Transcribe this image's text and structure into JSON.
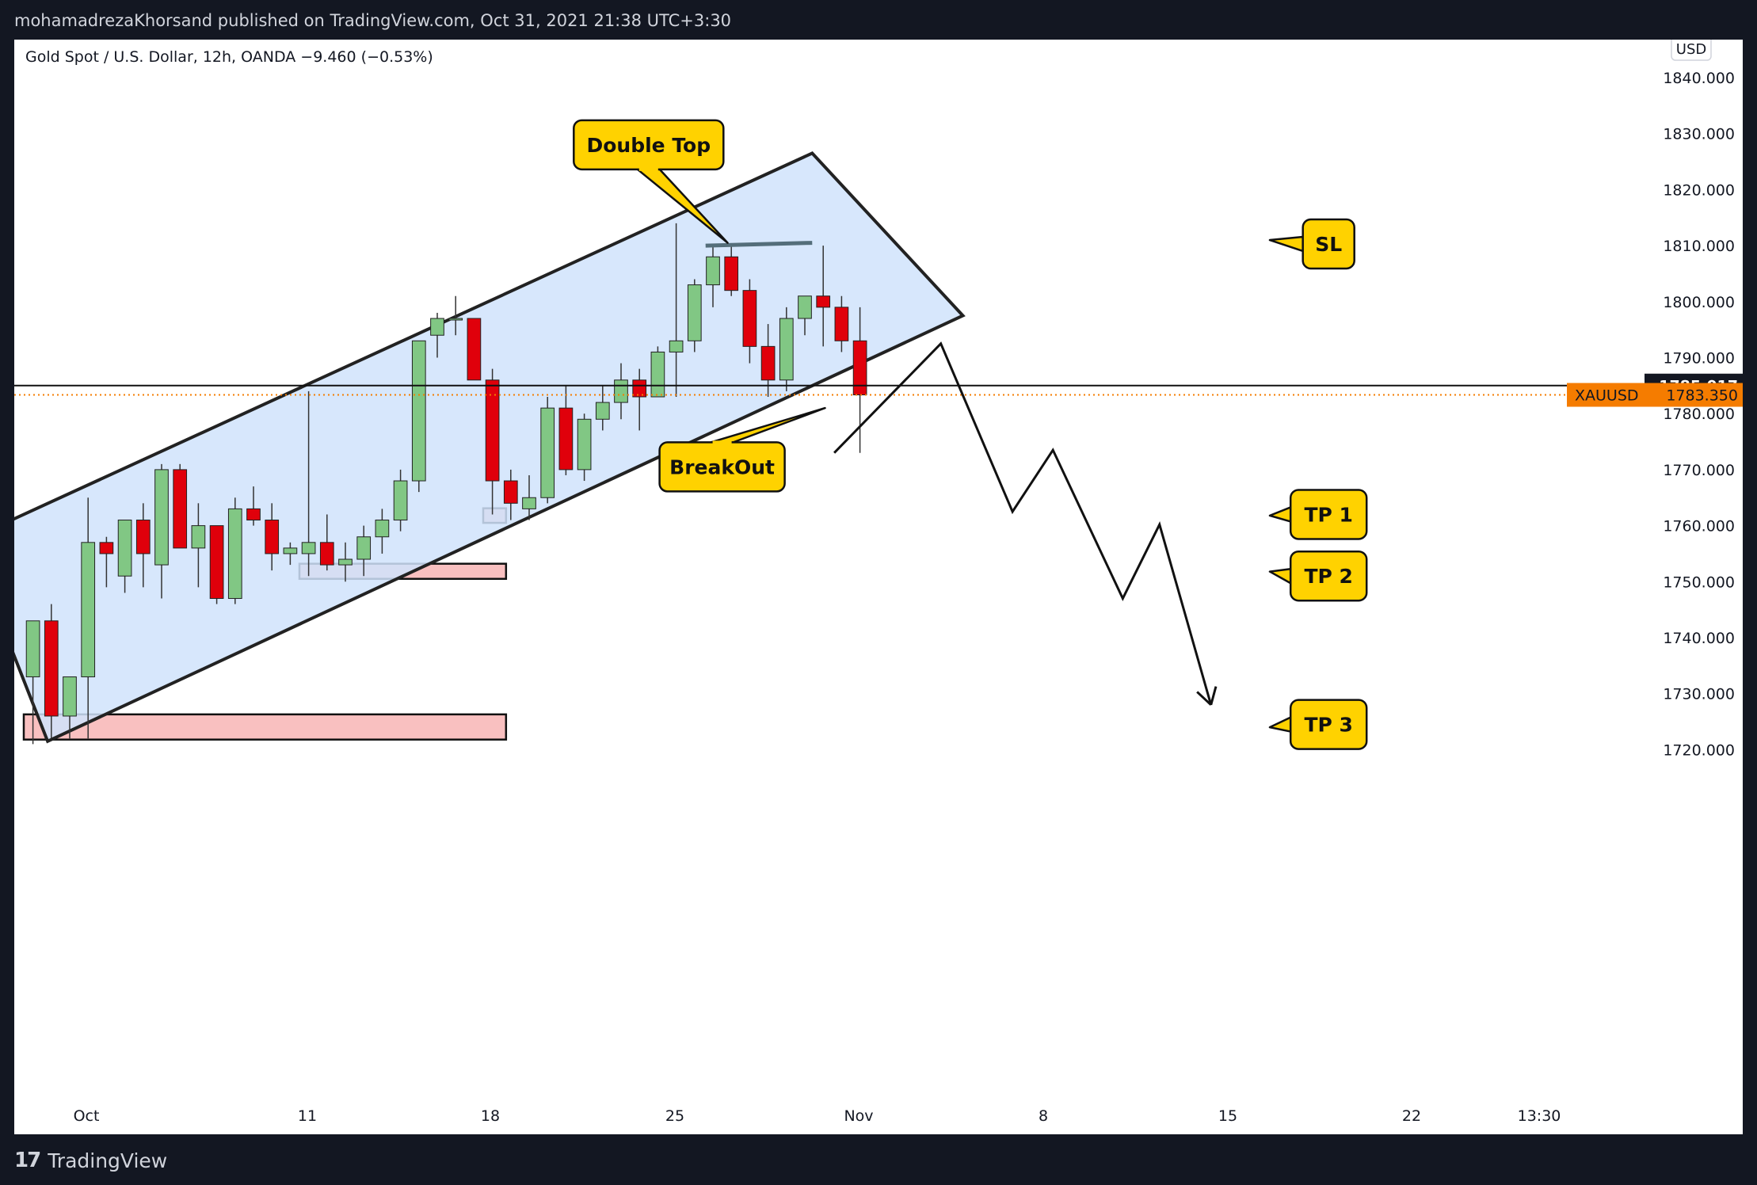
{
  "header": {
    "publish_line": "mohamadrezaKhorsand published on TradingView.com, Oct 31, 2021 21:38 UTC+3:30"
  },
  "chart_title": "Gold Spot / U.S. Dollar, 12h, OANDA  −9.460 (−0.53%)",
  "currency_button": "USD",
  "footer": {
    "brand": "TradingView",
    "logo_icon": "tradingview-logo-icon"
  },
  "colors": {
    "bull": "#81c784",
    "bear": "#e0000b",
    "channel": "#d0e3fb",
    "sl_zone": "#c9edf5",
    "entry_zone": "#fdf6c1",
    "tp_zone": "#f8b5b5",
    "callout": "#ffd200",
    "price_tag": "#f57c00",
    "border": "#131722"
  },
  "chart_data": {
    "type": "candlestick",
    "symbol": "XAUUSD",
    "ylim": [
      1712.5,
      1841.5
    ],
    "y_ticks": [
      "1720.000",
      "1730.000",
      "1740.000",
      "1750.000",
      "1760.000",
      "1770.000",
      "1780.000",
      "1790.000",
      "1800.000",
      "1810.000",
      "1820.000",
      "1830.000",
      "1840.000"
    ],
    "x_ticks": [
      "Oct",
      "11",
      "18",
      "25",
      "Nov",
      "8",
      "15",
      "22",
      "13:30"
    ],
    "last_price_label": "1785.017",
    "current_price_label": "1783.350",
    "current_price_symbol": "XAUUSD",
    "candles": [
      {
        "o": 1733.0,
        "h": 1743.0,
        "l": 1721.0,
        "c": 1743.0
      },
      {
        "o": 1743.0,
        "h": 1746.0,
        "l": 1722.0,
        "c": 1726.0
      },
      {
        "o": 1726.0,
        "h": 1733.0,
        "l": 1722.0,
        "c": 1733.0
      },
      {
        "o": 1733.0,
        "h": 1765.0,
        "l": 1722.0,
        "c": 1757.0
      },
      {
        "o": 1757.0,
        "h": 1758.0,
        "l": 1749.0,
        "c": 1755.0
      },
      {
        "o": 1751.0,
        "h": 1761.0,
        "l": 1748.0,
        "c": 1761.0
      },
      {
        "o": 1761.0,
        "h": 1764.0,
        "l": 1749.0,
        "c": 1755.0
      },
      {
        "o": 1753.0,
        "h": 1771.0,
        "l": 1747.0,
        "c": 1770.0
      },
      {
        "o": 1770.0,
        "h": 1771.0,
        "l": 1756.0,
        "c": 1756.0
      },
      {
        "o": 1756.0,
        "h": 1764.0,
        "l": 1749.0,
        "c": 1760.0
      },
      {
        "o": 1760.0,
        "h": 1760.0,
        "l": 1746.0,
        "c": 1747.0
      },
      {
        "o": 1747.0,
        "h": 1765.0,
        "l": 1746.0,
        "c": 1763.0
      },
      {
        "o": 1763.0,
        "h": 1767.0,
        "l": 1760.0,
        "c": 1761.0
      },
      {
        "o": 1761.0,
        "h": 1764.0,
        "l": 1752.0,
        "c": 1755.0
      },
      {
        "o": 1755.0,
        "h": 1757.0,
        "l": 1753.0,
        "c": 1756.0
      },
      {
        "o": 1755.0,
        "h": 1784.0,
        "l": 1751.0,
        "c": 1757.0
      },
      {
        "o": 1757.0,
        "h": 1762.0,
        "l": 1752.0,
        "c": 1753.0
      },
      {
        "o": 1753.0,
        "h": 1757.0,
        "l": 1750.0,
        "c": 1754.0
      },
      {
        "o": 1754.0,
        "h": 1760.0,
        "l": 1751.0,
        "c": 1758.0
      },
      {
        "o": 1758.0,
        "h": 1763.0,
        "l": 1755.0,
        "c": 1761.0
      },
      {
        "o": 1761.0,
        "h": 1770.0,
        "l": 1759.0,
        "c": 1768.0
      },
      {
        "o": 1768.0,
        "h": 1793.0,
        "l": 1766.0,
        "c": 1793.0
      },
      {
        "o": 1794.0,
        "h": 1798.0,
        "l": 1790.0,
        "c": 1797.0
      },
      {
        "o": 1797.0,
        "h": 1801.0,
        "l": 1794.0,
        "c": 1797.0
      },
      {
        "o": 1797.0,
        "h": 1797.0,
        "l": 1786.0,
        "c": 1786.0
      },
      {
        "o": 1786.0,
        "h": 1788.0,
        "l": 1762.0,
        "c": 1768.0
      },
      {
        "o": 1768.0,
        "h": 1770.0,
        "l": 1761.0,
        "c": 1764.0
      },
      {
        "o": 1763.0,
        "h": 1769.0,
        "l": 1761.0,
        "c": 1765.0
      },
      {
        "o": 1765.0,
        "h": 1783.0,
        "l": 1764.0,
        "c": 1781.0
      },
      {
        "o": 1781.0,
        "h": 1785.0,
        "l": 1769.0,
        "c": 1770.0
      },
      {
        "o": 1770.0,
        "h": 1780.0,
        "l": 1768.0,
        "c": 1779.0
      },
      {
        "o": 1779.0,
        "h": 1785.0,
        "l": 1777.0,
        "c": 1782.0
      },
      {
        "o": 1782.0,
        "h": 1789.0,
        "l": 1779.0,
        "c": 1786.0
      },
      {
        "o": 1786.0,
        "h": 1788.0,
        "l": 1777.0,
        "c": 1783.0
      },
      {
        "o": 1783.0,
        "h": 1792.0,
        "l": 1783.0,
        "c": 1791.0
      },
      {
        "o": 1791.0,
        "h": 1814.0,
        "l": 1783.0,
        "c": 1793.0
      },
      {
        "o": 1793.0,
        "h": 1804.0,
        "l": 1791.0,
        "c": 1803.0
      },
      {
        "o": 1803.0,
        "h": 1810.0,
        "l": 1799.0,
        "c": 1808.0
      },
      {
        "o": 1808.0,
        "h": 1810.0,
        "l": 1801.0,
        "c": 1802.0
      },
      {
        "o": 1802.0,
        "h": 1804.0,
        "l": 1789.0,
        "c": 1792.0
      },
      {
        "o": 1792.0,
        "h": 1796.0,
        "l": 1783.0,
        "c": 1786.0
      },
      {
        "o": 1786.0,
        "h": 1799.0,
        "l": 1784.0,
        "c": 1797.0
      },
      {
        "o": 1797.0,
        "h": 1801.0,
        "l": 1794.0,
        "c": 1801.0
      },
      {
        "o": 1801.0,
        "h": 1810.0,
        "l": 1792.0,
        "c": 1799.0
      },
      {
        "o": 1799.0,
        "h": 1801.0,
        "l": 1791.0,
        "c": 1793.0
      },
      {
        "o": 1793.0,
        "h": 1799.0,
        "l": 1773.0,
        "c": 1783.35
      }
    ],
    "zones": [
      {
        "name": "sl-zone",
        "from_bar": 33,
        "to_day": 15.4,
        "low": 1807.8,
        "high": 1813.7,
        "color": "#c9edf5"
      },
      {
        "name": "entry-zone",
        "from_bar": 38,
        "to_day": 15.4,
        "low": 1782.7,
        "high": 1786.8,
        "color": "#fdf6c1"
      },
      {
        "name": "tp1-zone",
        "from_bar": 25,
        "to_day": 15.4,
        "low": 1760.5,
        "high": 1763.1,
        "color": "#f8b5b5"
      },
      {
        "name": "tp2-zone",
        "from_bar": 15,
        "to_day": 15.4,
        "low": 1750.5,
        "high": 1753.2,
        "color": "#f8b5b5"
      },
      {
        "name": "tp3-zone",
        "from_bar": 0,
        "to_day": 15.4,
        "low": 1721.8,
        "high": 1726.3,
        "color": "#f8b5b5"
      }
    ],
    "callouts": [
      {
        "text": "Double Top",
        "price": 1828.0,
        "bar": 34.0,
        "anchor_price": 1810.5,
        "anchor_bar": 38.3
      },
      {
        "text": "BreakOut",
        "price": 1770.5,
        "bar": 38.0,
        "anchor_price": 1781.0,
        "anchor_bar": 43.6
      },
      {
        "text": "SL",
        "price": 1810.3,
        "bar": 71.0,
        "anchor_price": 1811.0,
        "anchor_bar": 67.8
      },
      {
        "text": "TP 1",
        "price": 1762.0,
        "bar": 71.0,
        "anchor_price": 1761.8,
        "anchor_bar": 67.8
      },
      {
        "text": "TP 2",
        "price": 1751.0,
        "bar": 71.0,
        "anchor_price": 1751.8,
        "anchor_bar": 67.8
      },
      {
        "text": "TP 3",
        "price": 1724.5,
        "bar": 71.0,
        "anchor_price": 1724.0,
        "anchor_bar": 67.8
      }
    ],
    "projection_path": [
      [
        44.1,
        1773.0
      ],
      [
        49.9,
        1792.5
      ],
      [
        53.8,
        1762.5
      ],
      [
        56.0,
        1773.5
      ],
      [
        59.8,
        1747.0
      ],
      [
        61.8,
        1760.2
      ],
      [
        64.6,
        1728.0
      ]
    ],
    "double_top_line": [
      [
        37.1,
        1810.0
      ],
      [
        42.9,
        1810.5
      ]
    ],
    "channel_upper": [
      [
        -3.0,
        1757.5
      ],
      [
        42.9,
        1826.5
      ]
    ],
    "channel_lower": [
      [
        1.3,
        1721.5
      ],
      [
        51.1,
        1797.5
      ]
    ],
    "horizontal_line_price": 1785.017
  }
}
